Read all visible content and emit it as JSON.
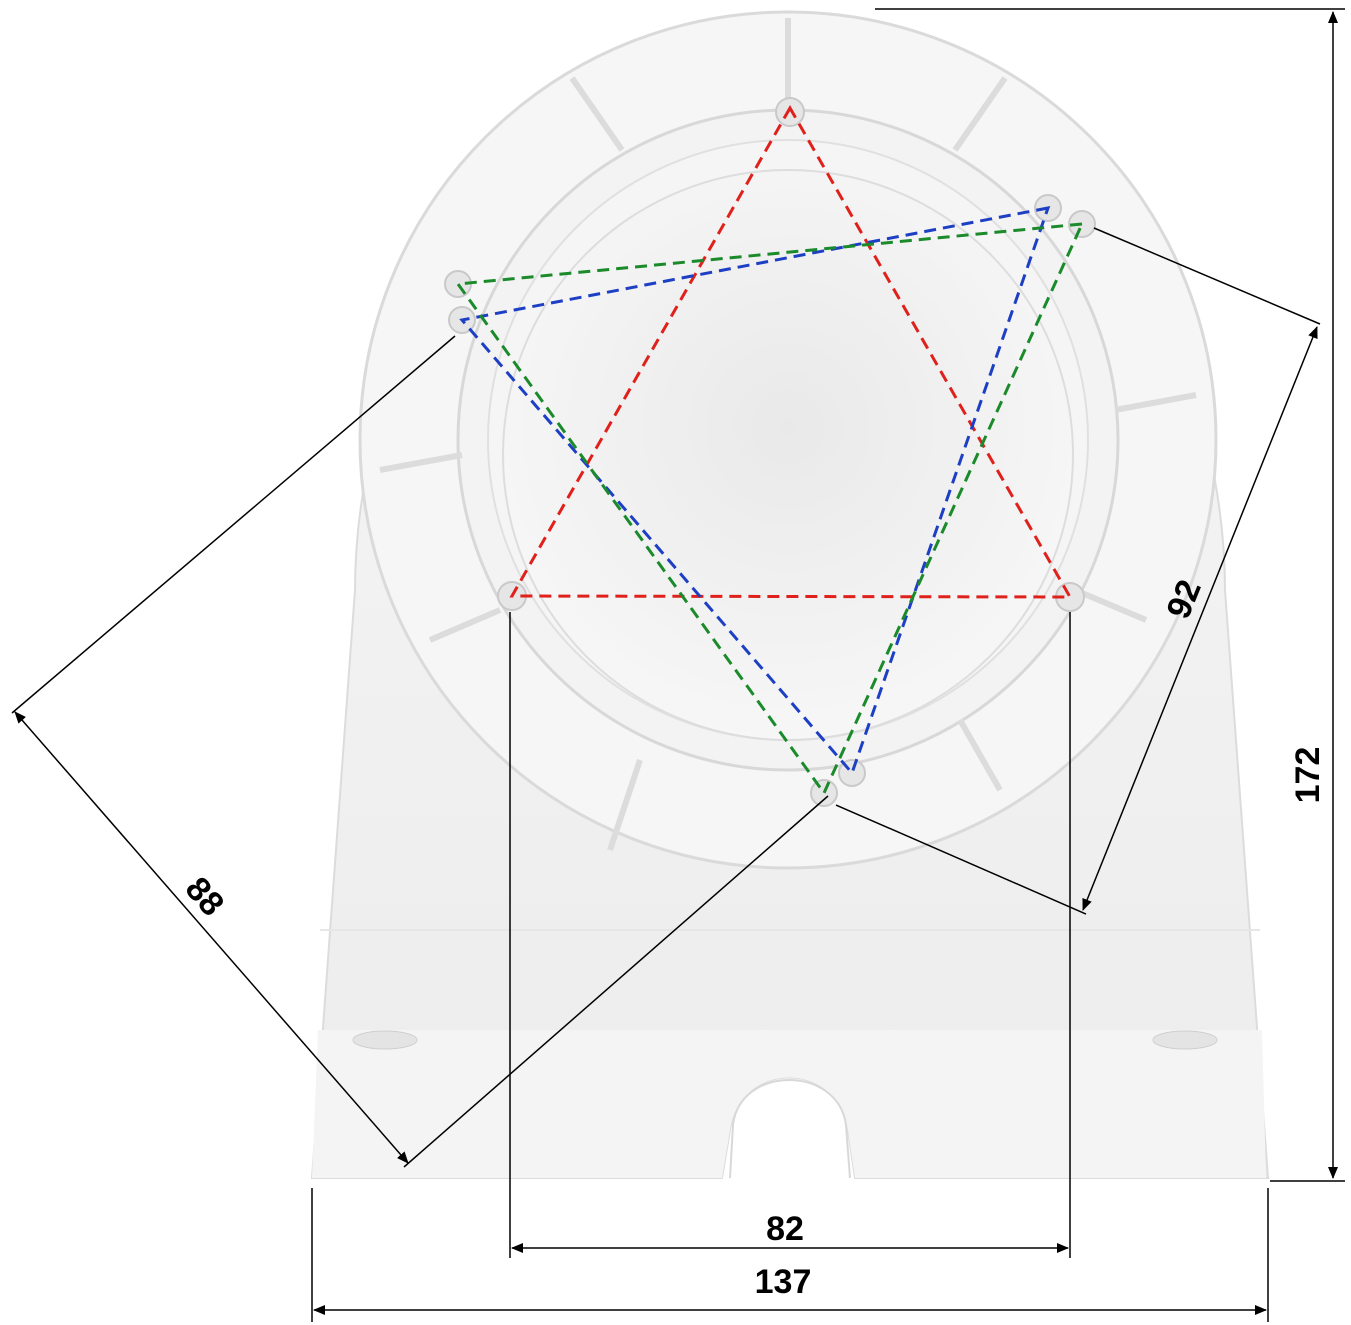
{
  "diagram": {
    "subject": "wall-mount-bracket",
    "dimensions": {
      "overall_height": "172",
      "overall_width": "137",
      "hole_spacing_horizontal": "82",
      "hole_spacing_green": "88",
      "hole_spacing_blue": "92"
    },
    "colors": {
      "bracket_fill": "#f2f2f2",
      "bracket_edge": "#d6d6d6",
      "dimension_line": "#000000",
      "pattern_red": "#e0201b",
      "pattern_blue": "#1d3fc4",
      "pattern_green": "#1a8a2a"
    }
  }
}
